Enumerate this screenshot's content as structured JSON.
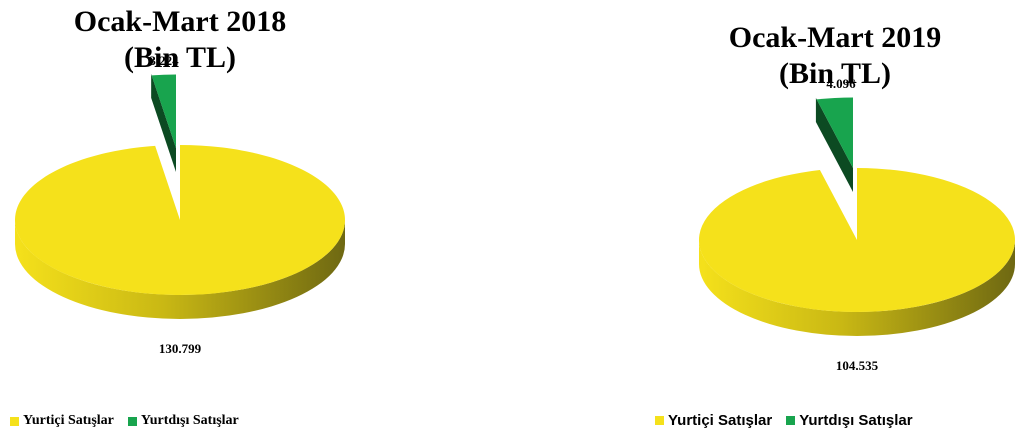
{
  "colors": {
    "yurtici": "#f5e11b",
    "yurtici_side_dark": "#6e6812",
    "yurtdisi": "#18a44e",
    "yurtdisi_side_dark": "#0c4a22"
  },
  "chart_data": [
    {
      "type": "pie",
      "title_line1": "Ocak-Mart 2018",
      "title_line2": "(Bin TL)",
      "categories": [
        "Yurtiçi Satışlar",
        "Yurtdışı Satışlar"
      ],
      "values": [
        130799,
        3224
      ],
      "value_labels": [
        "130.799",
        "3.224"
      ],
      "legend": [
        "Yurtiçi Satışlar",
        "Yurtdışı Satışlar"
      ],
      "legend_position": "bottom-left"
    },
    {
      "type": "pie",
      "title_line1": "Ocak-Mart 2019",
      "title_line2": "(Bin TL)",
      "categories": [
        "Yurtiçi Satışlar",
        "Yurtdışı Satışlar"
      ],
      "values": [
        104535,
        4096
      ],
      "value_labels": [
        "104.535",
        "4.096"
      ],
      "legend": [
        "Yurtiçi Satışlar",
        "Yurtdışı Satışlar"
      ],
      "legend_position": "bottom-right"
    }
  ]
}
